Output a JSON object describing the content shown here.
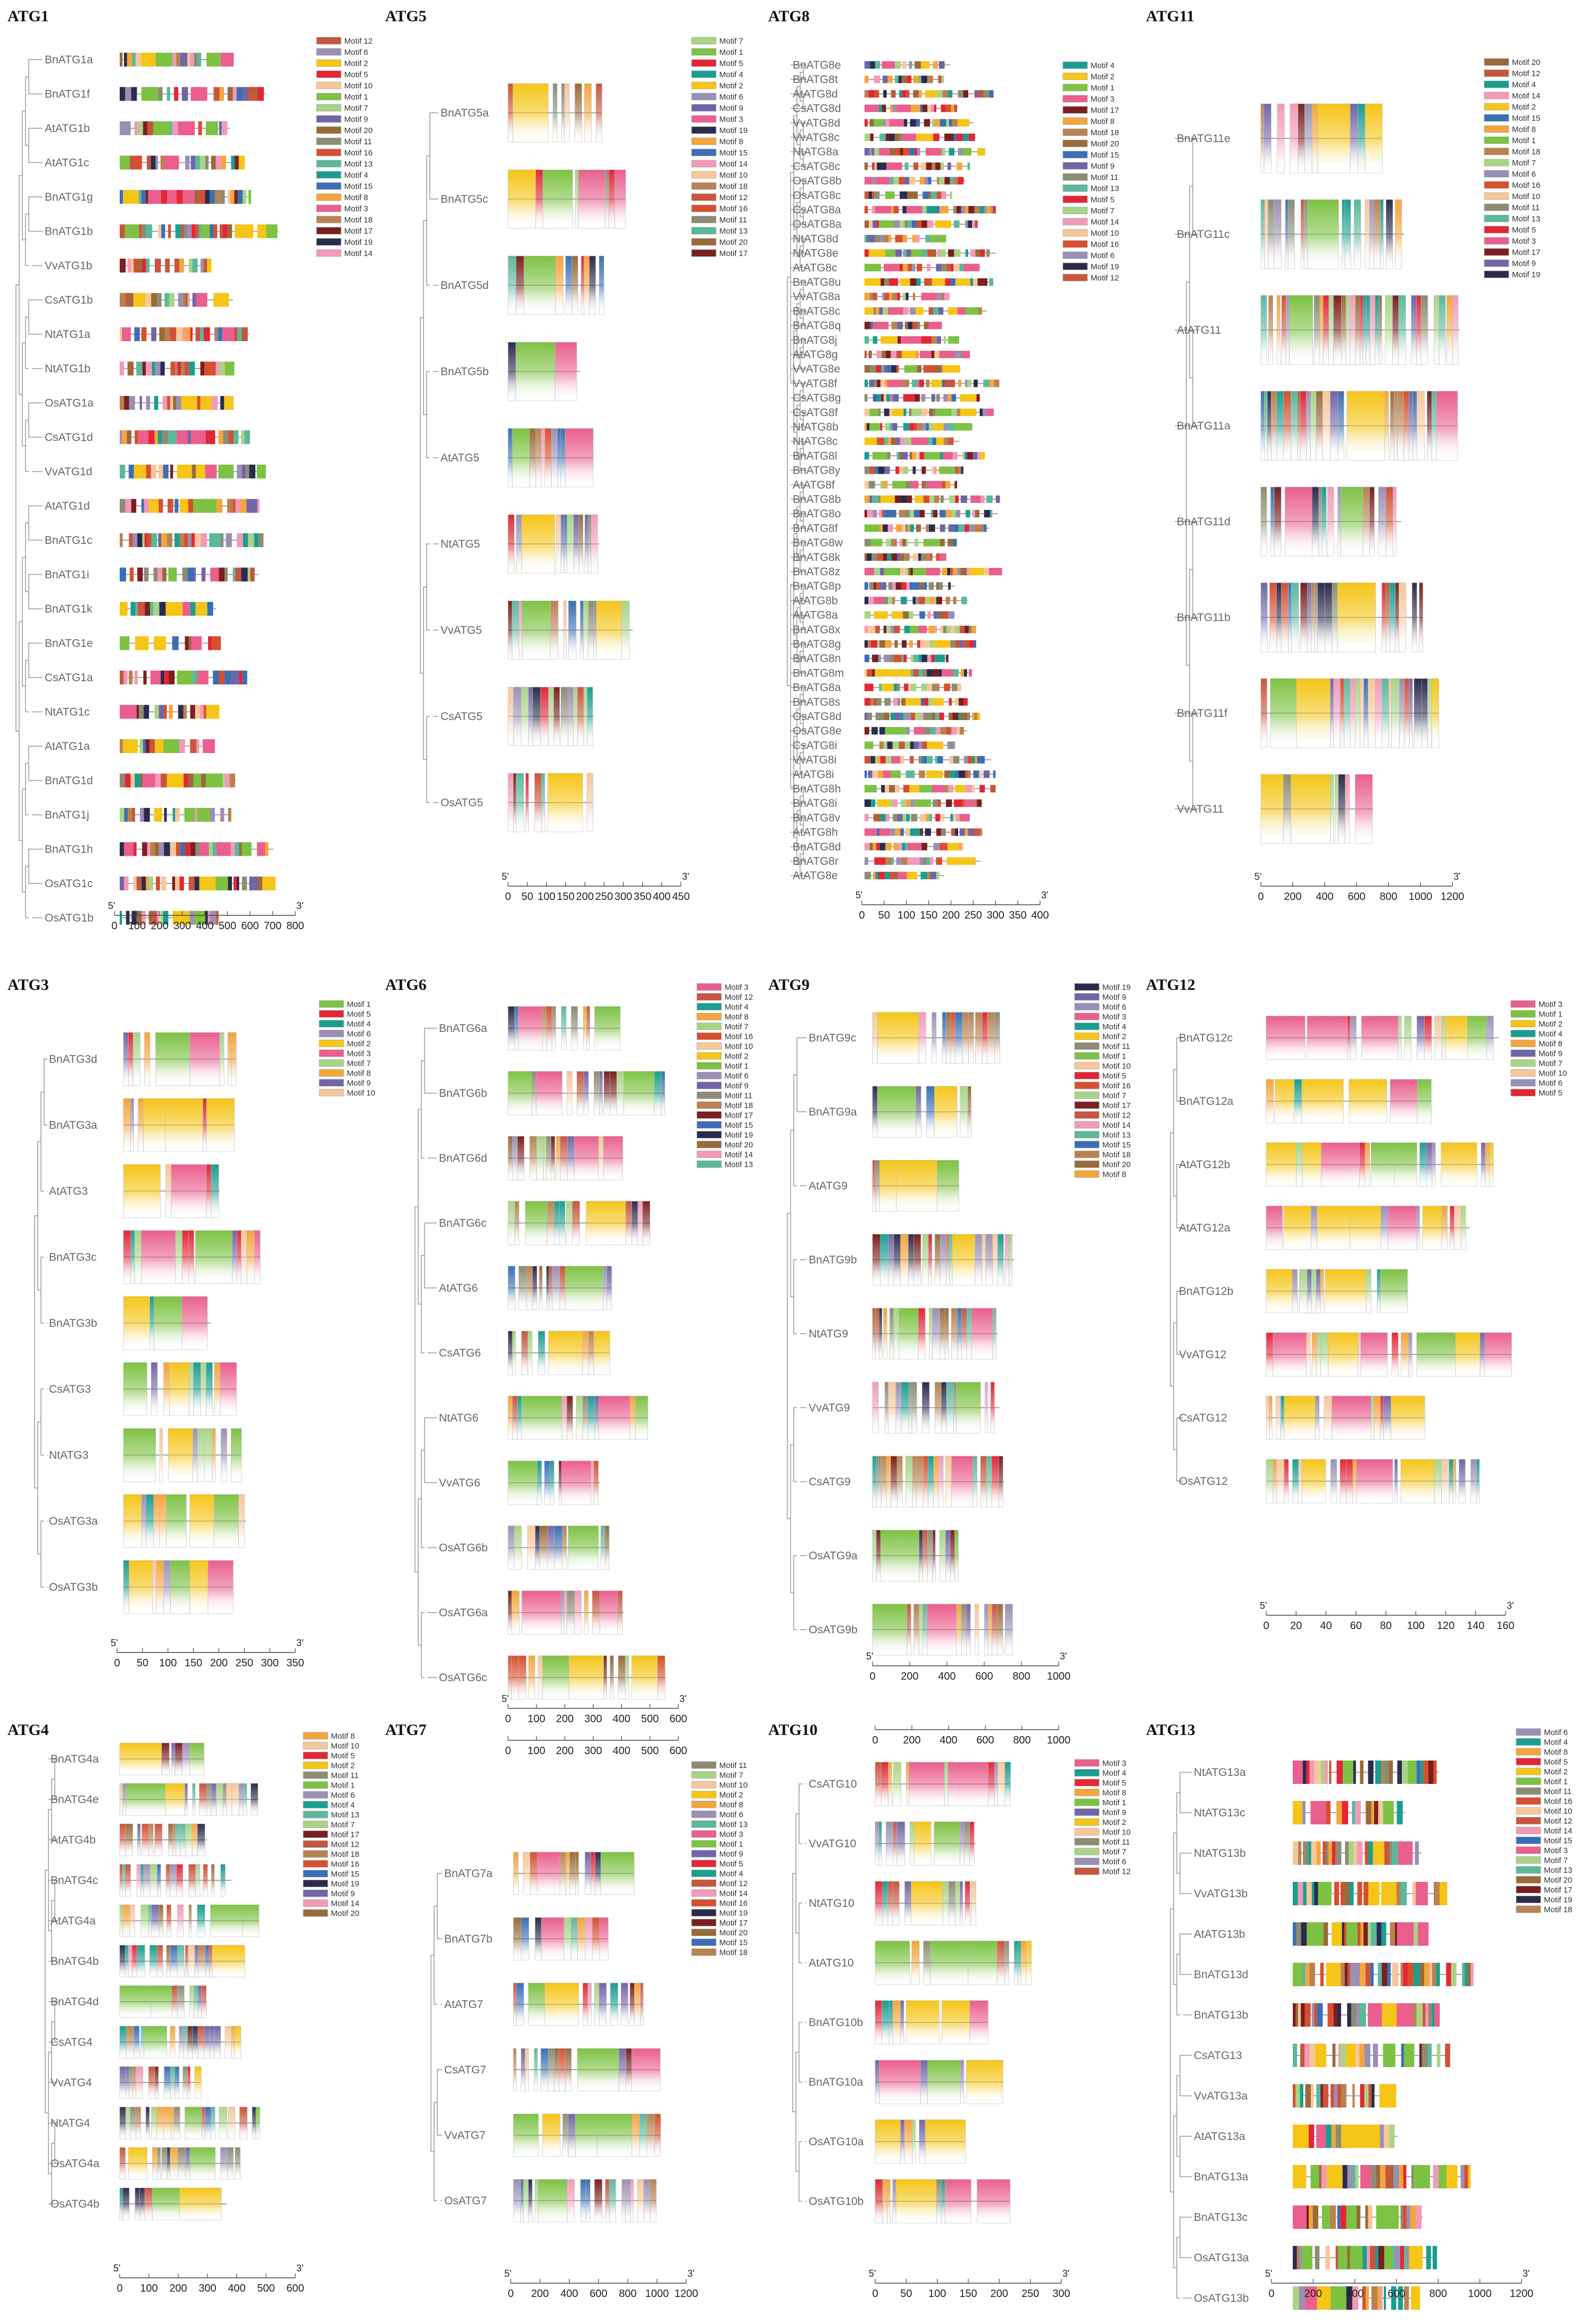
{
  "colors": {
    "Motif 1": "#7dc243",
    "Motif 2": "#f5c518",
    "Motif 3": "#ea5f8d",
    "Motif 4": "#1a9e8f",
    "Motif 5": "#e32636",
    "Motif 6": "#9a8fb5",
    "Motif 7": "#a9d486",
    "Motif 8": "#f4a53c",
    "Motif 9": "#7265a6",
    "Motif 10": "#f7c79a",
    "Motif 11": "#8c8c73",
    "Motif 12": "#c8553d",
    "Motif 13": "#5cb89b",
    "Motif 14": "#f29ab8",
    "Motif 15": "#3a6fb5",
    "Motif 16": "#d64f2f",
    "Motif 17": "#7a1f1f",
    "Motif 18": "#b98250",
    "Motif 19": "#2b2b4d",
    "Motif 20": "#9a6a3a"
  },
  "panels": [
    {
      "id": "ATG1",
      "title": "ATG1",
      "scale_end": "3'",
      "scale_start": "5'",
      "genes": [
        "BnATG1a",
        "BnATG1f",
        "AtATG1b",
        "AtATG1c",
        "BnATG1g",
        "BnATG1b",
        "VvATG1b",
        "CsATG1b",
        "NtATG1a",
        "NtATG1b",
        "OsATG1a",
        "CsATG1d",
        "VvATG1d",
        "AtATG1d",
        "BnATG1c",
        "BnATG1i",
        "BnATG1k",
        "BnATG1e",
        "CsATG1a",
        "NtATG1c",
        "AtATG1a",
        "BnATG1d",
        "BnATG1j",
        "BnATG1h",
        "OsATG1c",
        "OsATG1b"
      ],
      "ticks": [
        "0",
        "100",
        "200",
        "300",
        "400",
        "500",
        "600",
        "700",
        "800"
      ],
      "legend": [
        "Motif 12",
        "Motif 6",
        "Motif 2",
        "Motif 5",
        "Motif 10",
        "Motif 1",
        "Motif 7",
        "Motif 9",
        "Motif 20",
        "Motif 11",
        "Motif 16",
        "Motif 13",
        "Motif 4",
        "Motif 15",
        "Motif 8",
        "Motif 3",
        "Motif 18",
        "Motif 17",
        "Motif 19",
        "Motif 14"
      ]
    },
    {
      "id": "ATG5",
      "title": "ATG5",
      "scale_end": "3'",
      "scale_start": "5'",
      "genes": [
        "BnATG5a",
        "BnATG5c",
        "BnATG5d",
        "BnATG5b",
        "AtATG5",
        "NtATG5",
        "VvATG5",
        "CsATG5",
        "OsATG5"
      ],
      "ticks": [
        "0",
        "50",
        "100",
        "150",
        "200",
        "250",
        "300",
        "350",
        "400",
        "450"
      ],
      "legend": [
        "Motif 7",
        "Motif 1",
        "Motif 5",
        "Motif 4",
        "Motif 2",
        "Motif 6",
        "Motif 9",
        "Motif 3",
        "Motif 19",
        "Motif 8",
        "Motif 15",
        "Motif 14",
        "Motif 10",
        "Motif 18",
        "Motif 12",
        "Motif 16",
        "Motif 11",
        "Motif 13",
        "Motif 20",
        "Motif 17"
      ]
    },
    {
      "id": "ATG8",
      "title": "ATG8",
      "scale_end": "3'",
      "scale_start": "5'",
      "genes": [
        "BnATG8e",
        "BnATG8t",
        "AtATG8d",
        "CsATG8d",
        "VvATG8d",
        "VvATG8c",
        "NtATG8a",
        "CsATG8c",
        "OsATG8b",
        "OsATG8c",
        "CsATG8a",
        "OsATG8a",
        "NtATG8d",
        "NtATG8e",
        "AtATG8c",
        "BnATG8u",
        "VvATG8a",
        "BnATG8c",
        "BnATG8q",
        "BnATG8j",
        "AtATG8g",
        "VvATG8e",
        "VvATG8f",
        "CsATG8g",
        "CsATG8f",
        "NtATG8b",
        "NtATG8c",
        "BnATG8l",
        "BnATG8y",
        "AtATG8f",
        "BnATG8b",
        "BnATG8o",
        "BnATG8f",
        "BnATG8w",
        "BnATG8k",
        "BnATG8z",
        "BnATG8p",
        "AtATG8b",
        "AtATG8a",
        "BnATG8x",
        "BnATG8g",
        "BnATG8n",
        "BnATG8m",
        "BnATG8a",
        "BnATG8s",
        "OsATG8d",
        "OsATG8e",
        "CsATG8i",
        "VvATG8i",
        "AtATG8i",
        "BnATG8h",
        "BnATG8i",
        "BnATG8v",
        "AtATG8h",
        "BnATG8d",
        "BnATG8r",
        "AtATG8e"
      ],
      "ticks": [
        "0",
        "50",
        "100",
        "150",
        "200",
        "250",
        "300",
        "350",
        "400"
      ],
      "legend": [
        "Motif 4",
        "Motif 2",
        "Motif 1",
        "Motif 3",
        "Motif 17",
        "Motif 8",
        "Motif 18",
        "Motif 20",
        "Motif 15",
        "Motif 9",
        "Motif 11",
        "Motif 13",
        "Motif 5",
        "Motif 7",
        "Motif 14",
        "Motif 10",
        "Motif 16",
        "Motif 6",
        "Motif 19",
        "Motif 12"
      ]
    },
    {
      "id": "ATG11",
      "title": "ATG11",
      "scale_end": "3'",
      "scale_start": "5'",
      "genes": [
        "BnATG11e",
        "BnATG11c",
        "AtATG11",
        "BnATG11a",
        "BnATG11d",
        "BnATG11b",
        "BnATG11f",
        "VvATG11"
      ],
      "ticks": [
        "0",
        "200",
        "400",
        "600",
        "800",
        "1000",
        "1200"
      ],
      "legend": [
        "Motif 20",
        "Motif 12",
        "Motif 4",
        "Motif 14",
        "Motif 2",
        "Motif 15",
        "Motif 8",
        "Motif 1",
        "Motif 18",
        "Motif 7",
        "Motif 6",
        "Motif 16",
        "Motif 10",
        "Motif 11",
        "Motif 13",
        "Motif 5",
        "Motif 3",
        "Motif 17",
        "Motif 9",
        "Motif 19"
      ]
    },
    {
      "id": "ATG3",
      "title": "ATG3",
      "scale_end": "3'",
      "scale_start": "5'",
      "genes": [
        "BnATG3d",
        "BnATG3a",
        "AtATG3",
        "BnATG3c",
        "BnATG3b",
        "CsATG3",
        "NtATG3",
        "OsATG3a",
        "OsATG3b"
      ],
      "ticks": [
        "0",
        "50",
        "100",
        "150",
        "200",
        "250",
        "300",
        "350"
      ],
      "legend": [
        "Motif 1",
        "Motif 5",
        "Motif 4",
        "Motif 6",
        "Motif 2",
        "Motif 3",
        "Motif 7",
        "Motif 8",
        "Motif 9",
        "Motif 10"
      ]
    },
    {
      "id": "ATG6",
      "title": "ATG6",
      "scale_end": "3'",
      "scale_start": "5'",
      "genes": [
        "BnATG6a",
        "BnATG6b",
        "BnATG6d",
        "BnATG6c",
        "AtATG6",
        "CsATG6",
        "NtATG6",
        "VvATG6",
        "OsATG6b",
        "OsATG6a",
        "OsATG6c"
      ],
      "ticks": [
        "0",
        "100",
        "200",
        "300",
        "400",
        "500",
        "600"
      ],
      "legend": [
        "Motif 3",
        "Motif 12",
        "Motif 4",
        "Motif 8",
        "Motif 7",
        "Motif 16",
        "Motif 10",
        "Motif 2",
        "Motif 1",
        "Motif 6",
        "Motif 9",
        "Motif 11",
        "Motif 18",
        "Motif 17",
        "Motif 15",
        "Motif 19",
        "Motif 20",
        "Motif 14",
        "Motif 13"
      ]
    },
    {
      "id": "ATG9",
      "title": "ATG9",
      "scale_end": "3'",
      "scale_start": "5'",
      "genes": [
        "BnATG9c",
        "BnATG9a",
        "AtATG9",
        "BnATG9b",
        "NtATG9",
        "VvATG9",
        "CsATG9",
        "OsATG9a",
        "OsATG9b"
      ],
      "ticks": [
        "0",
        "200",
        "400",
        "600",
        "800",
        "1000"
      ],
      "legend": [
        "Motif 19",
        "Motif 9",
        "Motif 6",
        "Motif 3",
        "Motif 4",
        "Motif 2",
        "Motif 11",
        "Motif 1",
        "Motif 10",
        "Motif 5",
        "Motif 16",
        "Motif 7",
        "Motif 17",
        "Motif 12",
        "Motif 14",
        "Motif 13",
        "Motif 15",
        "Motif 18",
        "Motif 20",
        "Motif 8"
      ]
    },
    {
      "id": "ATG12",
      "title": "ATG12",
      "scale_end": "3'",
      "scale_start": "5'",
      "genes": [
        "BnATG12c",
        "BnATG12a",
        "AtATG12b",
        "AtATG12a",
        "BnATG12b",
        "VvATG12",
        "CsATG12",
        "OsATG12"
      ],
      "ticks": [
        "0",
        "20",
        "40",
        "60",
        "80",
        "100",
        "120",
        "140",
        "160"
      ],
      "legend": [
        "Motif 3",
        "Motif 1",
        "Motif 2",
        "Motif 4",
        "Motif 8",
        "Motif 9",
        "Motif 7",
        "Motif 10",
        "Motif 6",
        "Motif 5"
      ]
    },
    {
      "id": "ATG4",
      "title": "ATG4",
      "scale_end": "3'",
      "scale_start": "5'",
      "genes": [
        "BnATG4a",
        "BnATG4e",
        "AtATG4b",
        "BnATG4c",
        "AtATG4a",
        "BnATG4b",
        "BnATG4d",
        "CsATG4",
        "VvATG4",
        "NtATG4",
        "OsATG4a",
        "OsATG4b"
      ],
      "ticks": [
        "0",
        "100",
        "200",
        "300",
        "400",
        "500",
        "600"
      ],
      "legend": [
        "Motif 8",
        "Motif 10",
        "Motif 5",
        "Motif 2",
        "Motif 11",
        "Motif 1",
        "Motif 6",
        "Motif 4",
        "Motif 13",
        "Motif 7",
        "Motif 17",
        "Motif 12",
        "Motif 18",
        "Motif 16",
        "Motif 15",
        "Motif 19",
        "Motif 9",
        "Motif 14",
        "Motif 20"
      ]
    },
    {
      "id": "ATG7",
      "title": "ATG7",
      "scale_end": "3'",
      "scale_start": "5'",
      "genes": [
        "BnATG7a",
        "BnATG7b",
        "AtATG7",
        "CsATG7",
        "VvATG7",
        "OsATG7"
      ],
      "ticks": [
        "0",
        "200",
        "400",
        "600",
        "800",
        "1000",
        "1200"
      ],
      "legend": [
        "Motif 11",
        "Motif 7",
        "Motif 10",
        "Motif 2",
        "Motif 8",
        "Motif 6",
        "Motif 13",
        "Motif 3",
        "Motif 1",
        "Motif 9",
        "Motif 5",
        "Motif 4",
        "Motif 12",
        "Motif 14",
        "Motif 16",
        "Motif 19",
        "Motif 17",
        "Motif 20",
        "Motif 15",
        "Motif 18"
      ]
    },
    {
      "id": "ATG10",
      "title": "ATG10",
      "scale_end": "3'",
      "scale_start": "5'",
      "genes": [
        "CsATG10",
        "VvATG10",
        "NtATG10",
        "AtATG10",
        "BnATG10b",
        "BnATG10a",
        "OsATG10a",
        "OsATG10b"
      ],
      "ticks": [
        "0",
        "50",
        "100",
        "150",
        "200",
        "250",
        "300"
      ],
      "legend": [
        "Motif 3",
        "Motif 4",
        "Motif 5",
        "Motif 8",
        "Motif 1",
        "Motif 9",
        "Motif 2",
        "Motif 10",
        "Motif 11",
        "Motif 7",
        "Motif 6",
        "Motif 12"
      ]
    },
    {
      "id": "ATG13",
      "title": "ATG13",
      "scale_end": "3'",
      "scale_start": "5'",
      "genes": [
        "NtATG13a",
        "NtATG13c",
        "NtATG13b",
        "VvATG13b",
        "AtATG13b",
        "BnATG13d",
        "BnATG13b",
        "CsATG13",
        "VvATG13a",
        "AtATG13a",
        "BnATG13a",
        "BnATG13c",
        "OsATG13a",
        "OsATG13b"
      ],
      "ticks": [
        "0",
        "200",
        "400",
        "600",
        "800",
        "1000",
        "1200"
      ],
      "legend": [
        "Motif 6",
        "Motif 4",
        "Motif 8",
        "Motif 5",
        "Motif 2",
        "Motif 1",
        "Motif 11",
        "Motif 16",
        "Motif 10",
        "Motif 12",
        "Motif 14",
        "Motif 15",
        "Motif 3",
        "Motif 7",
        "Motif 13",
        "Motif 20",
        "Motif 17",
        "Motif 19",
        "Motif 18"
      ]
    }
  ],
  "ticks_atg5_top": [
    "0",
    "100",
    "200",
    "300",
    "400",
    "500",
    "600"
  ],
  "ticks_atg10_top": [
    "0",
    "200",
    "400",
    "600",
    "800",
    "1000"
  ]
}
